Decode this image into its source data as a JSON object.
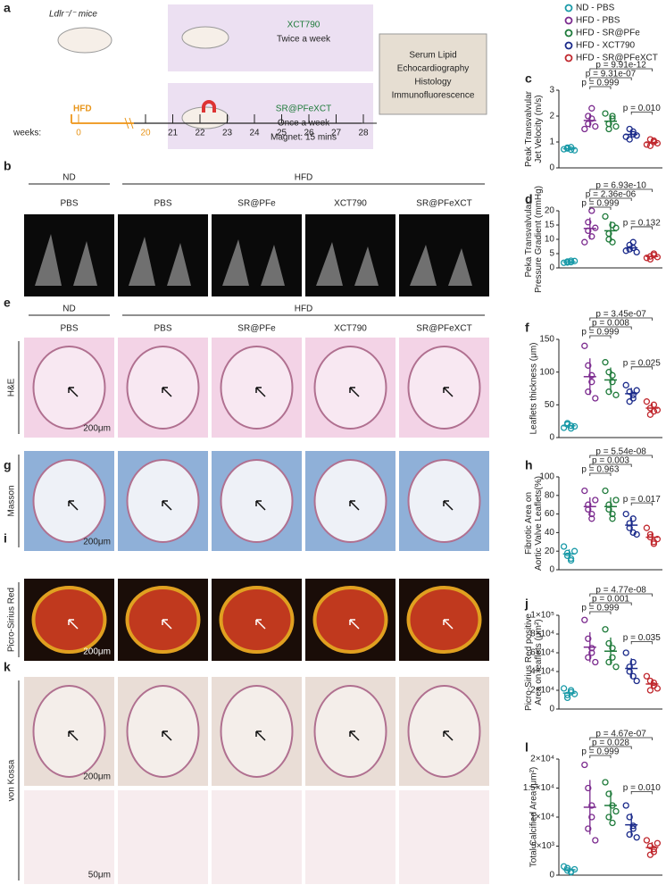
{
  "schematic": {
    "panel": "a",
    "mice": "Ldlr⁻/⁻ mice",
    "diet": "HFD",
    "weeks_label": "weeks:",
    "weeks": [
      0,
      20,
      21,
      22,
      23,
      24,
      25,
      26,
      27,
      28
    ],
    "treatment_1": {
      "drug": "XCT790",
      "schedule": "Twice a week"
    },
    "treatment_2": {
      "drug": "SR@PFeXCT",
      "schedule": "Once a week",
      "magnet": "Magnet: 15 mins"
    },
    "endpoints": [
      "Serum Lipid",
      "Echocardiography",
      "Histology",
      "Immunofluorescence"
    ]
  },
  "echo": {
    "panel": "b",
    "group_labels": [
      "ND",
      "HFD"
    ],
    "columns": [
      "PBS",
      "PBS",
      "SR@PFe",
      "XCT790",
      "SR@PFeXCT"
    ]
  },
  "stain_header": {
    "group_labels": [
      "ND",
      "HFD"
    ],
    "columns": [
      "PBS",
      "PBS",
      "SR@PFe",
      "XCT790",
      "SR@PFeXCT"
    ]
  },
  "stains": [
    {
      "panel": "e",
      "row_label": "H&E",
      "scale": "200μm"
    },
    {
      "panel": "g",
      "row_label": "Masson",
      "scale": "200μm"
    },
    {
      "panel": "i",
      "row_label": "Picro-Sirius Red",
      "scale": "200μm"
    },
    {
      "panel": "k",
      "row_label": "von Kossa",
      "scale": "200μm",
      "zoom_scale": "50μm"
    }
  ],
  "chart_data": [
    {
      "type": "strip",
      "panel": "c",
      "ylabel": [
        "Peak Transvalvular",
        "Jet Velocity (m/s)"
      ],
      "ylim": [
        0,
        3
      ],
      "yticks": [
        0,
        1,
        2,
        3
      ],
      "series": [
        {
          "name": "ND - PBS",
          "color": "#1a9aa8",
          "values": [
            0.72,
            0.78,
            0.7,
            0.75,
            0.8,
            0.68
          ],
          "mean": 0.74,
          "sd": 0.05
        },
        {
          "name": "HFD - PBS",
          "color": "#7b2a8e",
          "values": [
            1.5,
            2.0,
            2.3,
            1.7,
            1.9,
            1.6
          ],
          "mean": 1.83,
          "sd": 0.28
        },
        {
          "name": "HFD - SR@PFe",
          "color": "#1e7a3a",
          "values": [
            2.1,
            1.5,
            1.9,
            1.7,
            2.0,
            1.6
          ],
          "mean": 1.8,
          "sd": 0.22
        },
        {
          "name": "HFD - XCT790",
          "color": "#1a2a8a",
          "values": [
            1.2,
            1.5,
            1.4,
            1.1,
            1.3,
            1.25
          ],
          "mean": 1.29,
          "sd": 0.14
        },
        {
          "name": "HFD - SR@PFeXCT",
          "color": "#c0282e",
          "values": [
            0.9,
            1.1,
            1.0,
            0.85,
            1.05,
            0.95
          ],
          "mean": 0.98,
          "sd": 0.09
        }
      ],
      "annotations": [
        "p = 9.91e-12",
        "p = 9.31e-07",
        "p = 0.999",
        "p = 0.010"
      ]
    },
    {
      "type": "strip",
      "panel": "d",
      "ylabel": [
        "Peka Transvalvular",
        "Pressure Gradient (mmHg)"
      ],
      "ylim": [
        0,
        20
      ],
      "yticks": [
        0,
        5,
        10,
        15,
        20
      ],
      "series": [
        {
          "color": "#1a9aa8",
          "values": [
            1.8,
            2.2,
            2.5,
            1.9,
            2.0,
            2.4
          ],
          "mean": 2.1,
          "sd": 0.3
        },
        {
          "color": "#7b2a8e",
          "values": [
            9,
            16,
            20,
            13,
            11,
            14
          ],
          "mean": 13.8,
          "sd": 3.8
        },
        {
          "color": "#1e7a3a",
          "values": [
            18,
            10,
            15,
            12,
            9,
            14
          ],
          "mean": 13,
          "sd": 3.3
        },
        {
          "color": "#1a2a8a",
          "values": [
            6,
            8,
            9,
            6.5,
            7,
            5.5
          ],
          "mean": 7,
          "sd": 1.3
        },
        {
          "color": "#c0282e",
          "values": [
            3.5,
            4,
            5,
            3,
            4.5,
            3.8
          ],
          "mean": 4,
          "sd": 0.7
        }
      ],
      "annotations": [
        "p = 6.93e-10",
        "p = 2.36e-06",
        "p = 0.999",
        "p = 0.132"
      ]
    },
    {
      "type": "strip",
      "panel": "f",
      "ylabel": [
        "Leaflets thickness (μm)"
      ],
      "ylim": [
        0,
        150
      ],
      "yticks": [
        0,
        50,
        100,
        150
      ],
      "series": [
        {
          "color": "#1a9aa8",
          "values": [
            15,
            20,
            18,
            22,
            14,
            17
          ],
          "mean": 18,
          "sd": 3
        },
        {
          "color": "#7b2a8e",
          "values": [
            140,
            110,
            85,
            70,
            95,
            60
          ],
          "mean": 93,
          "sd": 28
        },
        {
          "color": "#1e7a3a",
          "values": [
            115,
            100,
            85,
            70,
            95,
            65
          ],
          "mean": 88,
          "sd": 19
        },
        {
          "color": "#1a2a8a",
          "values": [
            80,
            70,
            60,
            55,
            65,
            72
          ],
          "mean": 67,
          "sd": 9
        },
        {
          "color": "#c0282e",
          "values": [
            55,
            45,
            40,
            35,
            50,
            42
          ],
          "mean": 45,
          "sd": 7
        }
      ],
      "annotations": [
        "p = 3.45e-07",
        "p = 0.008",
        "p = 0.999",
        "p = 0.025"
      ]
    },
    {
      "type": "strip",
      "panel": "h",
      "ylabel": [
        "Fibrotic Area on",
        "Aortic Valve Leaflets(%)"
      ],
      "ylim": [
        0,
        100
      ],
      "yticks": [
        0,
        20,
        40,
        60,
        80,
        100
      ],
      "series": [
        {
          "color": "#1a9aa8",
          "values": [
            25,
            15,
            12,
            18,
            10,
            20
          ],
          "mean": 17,
          "sd": 5
        },
        {
          "color": "#7b2a8e",
          "values": [
            85,
            70,
            55,
            65,
            60,
            75
          ],
          "mean": 68,
          "sd": 10
        },
        {
          "color": "#1e7a3a",
          "values": [
            85,
            70,
            60,
            65,
            55,
            75
          ],
          "mean": 68,
          "sd": 10
        },
        {
          "color": "#1a2a8a",
          "values": [
            60,
            50,
            40,
            45,
            55,
            38
          ],
          "mean": 48,
          "sd": 8
        },
        {
          "color": "#c0282e",
          "values": [
            45,
            35,
            30,
            38,
            28,
            33
          ],
          "mean": 35,
          "sd": 6
        }
      ],
      "annotations": [
        "p = 5.54e-08",
        "p = 0.003",
        "p = 0.963",
        "p = 0.017"
      ]
    },
    {
      "type": "strip",
      "panel": "j",
      "ylabel": [
        "Picro-Sirius Red positive",
        "Area on leaflets (μm²)"
      ],
      "ylim": [
        0,
        100000
      ],
      "yticks": [
        0,
        {
          "value": 20000,
          "label": "2×10⁴"
        },
        {
          "value": 40000,
          "label": "4×10⁴"
        },
        {
          "value": 60000,
          "label": "6×10⁴"
        },
        {
          "value": 80000,
          "label": "8×10⁴"
        },
        {
          "value": 100000,
          "label": "1×10⁵"
        }
      ],
      "series": [
        {
          "color": "#1a9aa8",
          "values": [
            22000,
            15000,
            18000,
            12000,
            20000,
            16000
          ],
          "mean": 17000,
          "sd": 3600
        },
        {
          "color": "#7b2a8e",
          "values": [
            95000,
            75000,
            60000,
            55000,
            65000,
            50000
          ],
          "mean": 66000,
          "sd": 16000
        },
        {
          "color": "#1e7a3a",
          "values": [
            85000,
            70000,
            55000,
            50000,
            65000,
            45000
          ],
          "mean": 61700,
          "sd": 14600
        },
        {
          "color": "#1a2a8a",
          "values": [
            60000,
            45000,
            35000,
            40000,
            50000,
            30000
          ],
          "mean": 43300,
          "sd": 10800
        },
        {
          "color": "#c0282e",
          "values": [
            35000,
            30000,
            25000,
            20000,
            28000,
            22000
          ],
          "mean": 26700,
          "sd": 5400
        }
      ],
      "annotations": [
        "p = 4.77e-08",
        "p = 0.001",
        "p = 0.999",
        "p = 0.035"
      ]
    },
    {
      "type": "strip",
      "panel": "l",
      "ylabel": [
        "Total Calcified Area (μm²)"
      ],
      "ylim": [
        0,
        20000
      ],
      "yticks": [
        0,
        {
          "value": 5000,
          "label": "5×10³"
        },
        {
          "value": 10000,
          "label": "1×10⁴"
        },
        {
          "value": 15000,
          "label": "1.5×10⁴"
        },
        {
          "value": 20000,
          "label": "2×10⁴"
        }
      ],
      "series": [
        {
          "color": "#1a9aa8",
          "values": [
            1500,
            800,
            500,
            1200,
            600,
            1000
          ],
          "mean": 930,
          "sd": 380
        },
        {
          "color": "#7b2a8e",
          "values": [
            19000,
            15000,
            12000,
            8000,
            10000,
            6000
          ],
          "mean": 11700,
          "sd": 4700
        },
        {
          "color": "#1e7a3a",
          "values": [
            16000,
            14000,
            12000,
            10000,
            9000,
            11000
          ],
          "mean": 12000,
          "sd": 2600
        },
        {
          "color": "#1a2a8a",
          "values": [
            12000,
            10000,
            8000,
            7000,
            8500,
            6500
          ],
          "mean": 8670,
          "sd": 2000
        },
        {
          "color": "#c0282e",
          "values": [
            6000,
            5000,
            4500,
            3500,
            4000,
            5500
          ],
          "mean": 4750,
          "sd": 950
        }
      ],
      "annotations": [
        "p = 4.67e-07",
        "p = 0.028",
        "p = 0.999",
        "p = 0.010"
      ]
    }
  ]
}
